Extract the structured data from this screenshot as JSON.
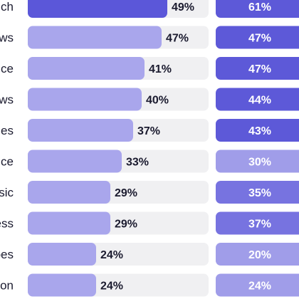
{
  "chart_data": {
    "type": "bar",
    "orientation": "horizontal",
    "categories": [
      "ch",
      "ws",
      "nce",
      "ws",
      "ies",
      "ice",
      "sic",
      "ess",
      "pes",
      "on"
    ],
    "series": [
      {
        "values": [
          49,
          47,
          41,
          40,
          37,
          33,
          29,
          29,
          24,
          24
        ],
        "unit": "%"
      },
      {
        "values": [
          61,
          47,
          47,
          44,
          43,
          30,
          35,
          37,
          20,
          24
        ],
        "unit": "%"
      }
    ],
    "value_labels": {
      "series_1": [
        "49%",
        "47%",
        "41%",
        "40%",
        "37%",
        "33%",
        "29%",
        "29%",
        "24%",
        "24%"
      ],
      "series_2": [
        "61%",
        "47%",
        "47%",
        "44%",
        "43%",
        "30%",
        "35%",
        "37%",
        "20%",
        "24%"
      ]
    },
    "xlim": [
      0,
      61
    ],
    "colors": {
      "track": "#f0f0f2",
      "bar_highlight": "#5b57d9",
      "bar_default": "#a9a6ec",
      "col2_dark": "#5d59d8",
      "col2_mid": "#7773e0",
      "col2_light": "#a09de9"
    },
    "title": "",
    "xlabel": "",
    "ylabel": ""
  }
}
